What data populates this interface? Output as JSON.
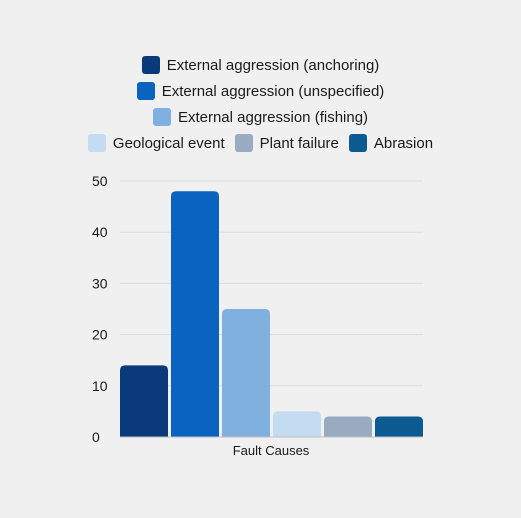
{
  "chart_data": {
    "type": "bar",
    "title": "",
    "xlabel": "Fault Causes",
    "ylabel": "",
    "ylim": [
      0,
      50
    ],
    "yticks": [
      0,
      10,
      20,
      30,
      40,
      50
    ],
    "grid": true,
    "legend_position": "top",
    "series": [
      {
        "name": "External aggression (anchoring)",
        "values": [
          14
        ],
        "color": "#0b3a7a"
      },
      {
        "name": "External aggression (unspecified)",
        "values": [
          48
        ],
        "color": "#0a63be"
      },
      {
        "name": "External aggression (fishing)",
        "values": [
          25
        ],
        "color": "#7fb0e0"
      },
      {
        "name": "Geological event",
        "values": [
          5
        ],
        "color": "#c3dcf2"
      },
      {
        "name": "Plant failure",
        "values": [
          4
        ],
        "color": "#98abc1"
      },
      {
        "name": "Abrasion",
        "values": [
          4
        ],
        "color": "#0b5a91"
      }
    ]
  }
}
